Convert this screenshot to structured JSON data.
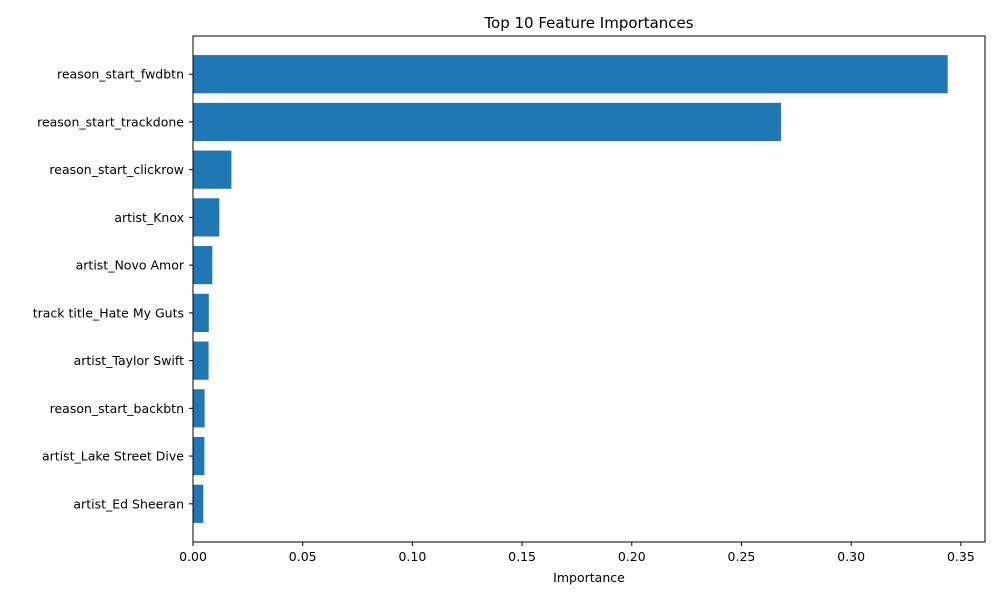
{
  "chart_data": {
    "type": "bar",
    "orientation": "horizontal",
    "title": "Top 10 Feature Importances",
    "xlabel": "Importance",
    "ylabel": "",
    "categories": [
      "reason_start_fwdbtn",
      "reason_start_trackdone",
      "reason_start_clickrow",
      "artist_Knox",
      "artist_Novo Amor",
      "track title_Hate My Guts",
      "artist_Taylor Swift",
      "reason_start_backbtn",
      "artist_Lake Street Dive",
      "artist_Ed Sheeran"
    ],
    "values": [
      0.344,
      0.268,
      0.0175,
      0.012,
      0.0088,
      0.0072,
      0.0071,
      0.0053,
      0.0052,
      0.0047
    ],
    "xlim": [
      0,
      0.361
    ],
    "xticks": [
      0.0,
      0.05,
      0.1,
      0.15,
      0.2,
      0.25,
      0.3,
      0.35
    ],
    "xtick_labels": [
      "0.00",
      "0.05",
      "0.10",
      "0.15",
      "0.20",
      "0.25",
      "0.30",
      "0.35"
    ],
    "bar_color": "#1f77b4",
    "grid": false,
    "legend": "none"
  }
}
